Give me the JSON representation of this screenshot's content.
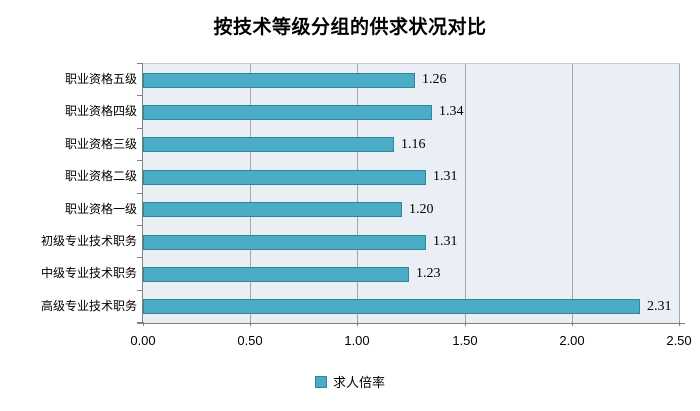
{
  "chart_data": {
    "type": "bar",
    "orientation": "horizontal",
    "title": "按技术等级分组的供求状况对比",
    "categories": [
      "职业资格五级",
      "职业资格四级",
      "职业资格三级",
      "职业资格二级",
      "职业资格一级",
      "初级专业技术职务",
      "中级专业技术职务",
      "高级专业技术职务"
    ],
    "series": [
      {
        "name": "求人倍率",
        "values": [
          1.26,
          1.34,
          1.16,
          1.31,
          1.2,
          1.31,
          1.23,
          2.31
        ]
      }
    ],
    "value_label_decimals": 2,
    "xlabel": "",
    "ylabel": "",
    "xlim": [
      0,
      2.5
    ],
    "x_ticks": [
      "0.00",
      "0.50",
      "1.00",
      "1.50",
      "2.00",
      "2.50"
    ],
    "grid": true,
    "legend_position": "bottom",
    "legend": [
      {
        "label": "求人倍率",
        "color": "#4BACC6"
      }
    ],
    "colors": {
      "bar_fill": "#4BACC6",
      "bar_border": "#31859C",
      "plot_bg": "#E9EFF4",
      "gridline": "#A6A6A6",
      "axis_line": "#808080",
      "text": "#000000"
    }
  }
}
